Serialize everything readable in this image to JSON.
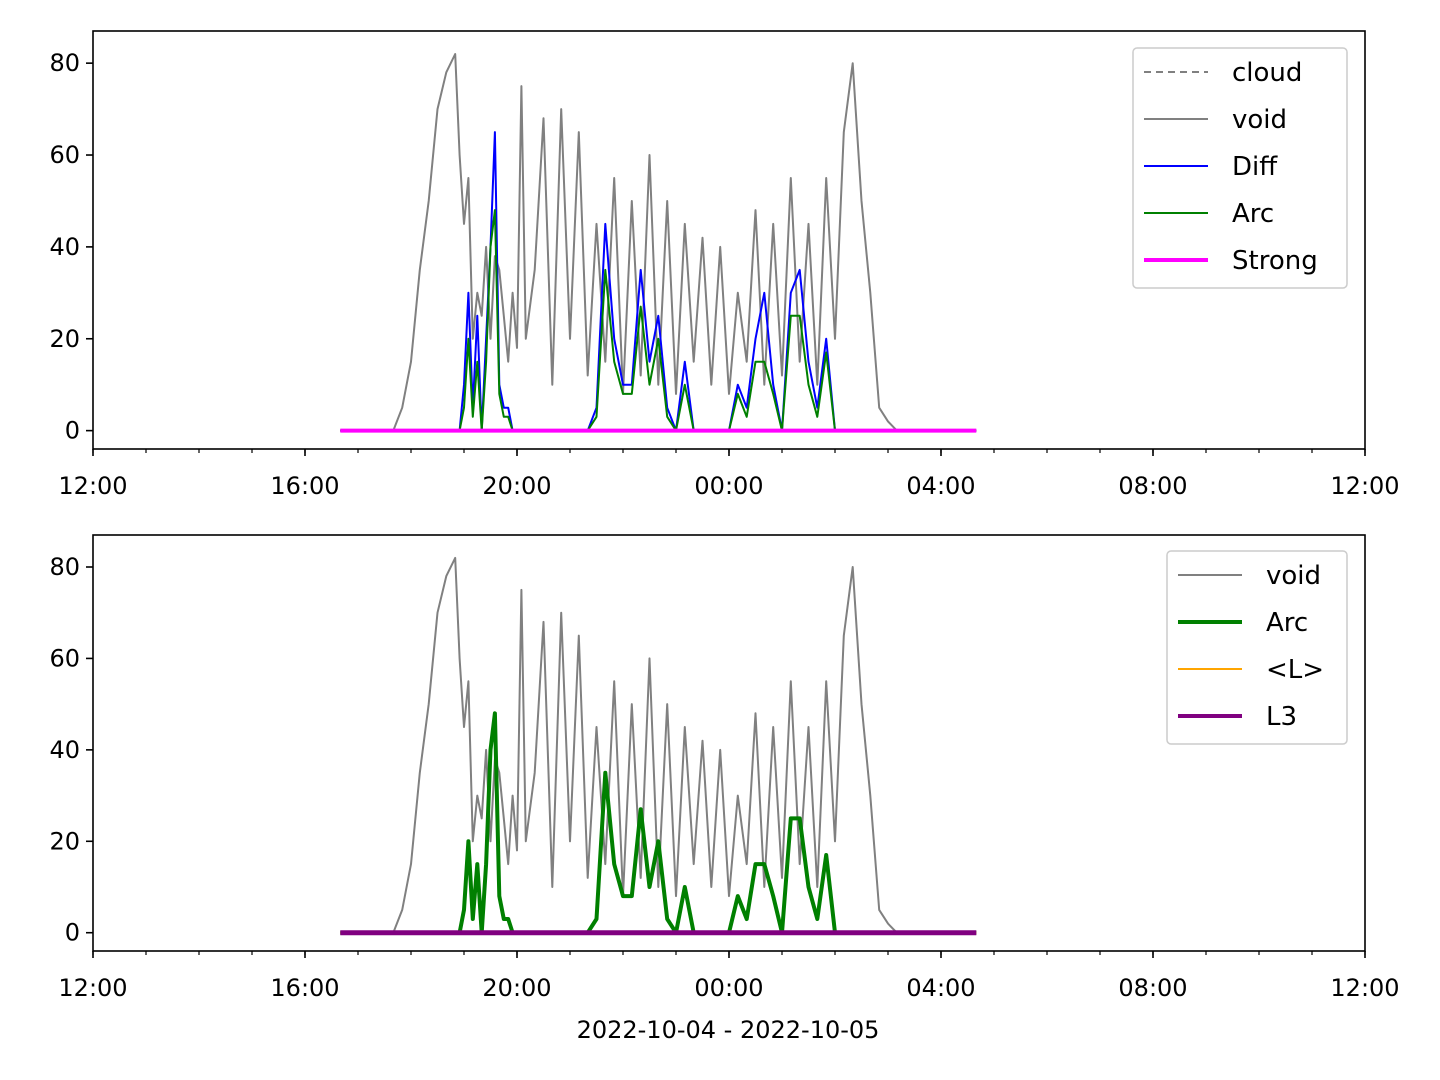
{
  "figure": {
    "xlabel": "2022-10-04 - 2022-10-05"
  },
  "chart_data": [
    {
      "type": "line",
      "x_axis": {
        "unit": "datetime",
        "range": [
          "2022-10-04 12:00",
          "2022-10-05 12:00"
        ],
        "major_ticks": [
          "2022-10-04 12:00",
          "2022-10-04 16:00",
          "2022-10-04 20:00",
          "2022-10-05 00:00",
          "2022-10-05 04:00",
          "2022-10-05 08:00",
          "2022-10-05 12:00"
        ],
        "tick_labels": [
          "12:00",
          "16:00",
          "20:00",
          "00:00",
          "04:00",
          "08:00",
          "12:00"
        ],
        "minor_tick_hours": 1
      },
      "y_axis": {
        "ylim": [
          -4,
          87
        ],
        "ticks": [
          0,
          20,
          40,
          60,
          80
        ],
        "tick_labels": [
          "0",
          "20",
          "40",
          "60",
          "80"
        ]
      },
      "legend": {
        "placement": "top-right",
        "entries": [
          {
            "label": "cloud",
            "color": "#808080",
            "style": "dashed"
          },
          {
            "label": "void",
            "color": "#808080",
            "style": "solid"
          },
          {
            "label": "Diff",
            "color": "#0000ff",
            "style": "solid"
          },
          {
            "label": "Arc",
            "color": "#008000",
            "style": "solid"
          },
          {
            "label": "Strong",
            "color": "#ff00ff",
            "style": "solid-thick"
          }
        ]
      },
      "series": [
        {
          "name": "void",
          "color": "#808080",
          "x": [
            "2022-10-04 16:40",
            "2022-10-04 17:40",
            "2022-10-04 17:50",
            "2022-10-04 18:00",
            "2022-10-04 18:10",
            "2022-10-04 18:20",
            "2022-10-04 18:30",
            "2022-10-04 18:40",
            "2022-10-04 18:50",
            "2022-10-04 18:55",
            "2022-10-04 19:00",
            "2022-10-04 19:05",
            "2022-10-04 19:10",
            "2022-10-04 19:15",
            "2022-10-04 19:20",
            "2022-10-04 19:25",
            "2022-10-04 19:30",
            "2022-10-04 19:35",
            "2022-10-04 19:40",
            "2022-10-04 19:45",
            "2022-10-04 19:50",
            "2022-10-04 19:55",
            "2022-10-04 20:00",
            "2022-10-04 20:05",
            "2022-10-04 20:10",
            "2022-10-04 20:20",
            "2022-10-04 20:30",
            "2022-10-04 20:40",
            "2022-10-04 20:50",
            "2022-10-04 21:00",
            "2022-10-04 21:10",
            "2022-10-04 21:20",
            "2022-10-04 21:30",
            "2022-10-04 21:40",
            "2022-10-04 21:50",
            "2022-10-04 22:00",
            "2022-10-04 22:10",
            "2022-10-04 22:20",
            "2022-10-04 22:30",
            "2022-10-04 22:40",
            "2022-10-04 22:50",
            "2022-10-04 23:00",
            "2022-10-04 23:10",
            "2022-10-04 23:20",
            "2022-10-04 23:30",
            "2022-10-04 23:40",
            "2022-10-04 23:50",
            "2022-10-05 00:00",
            "2022-10-05 00:10",
            "2022-10-05 00:20",
            "2022-10-05 00:30",
            "2022-10-05 00:40",
            "2022-10-05 00:50",
            "2022-10-05 01:00",
            "2022-10-05 01:10",
            "2022-10-05 01:20",
            "2022-10-05 01:30",
            "2022-10-05 01:40",
            "2022-10-05 01:50",
            "2022-10-05 02:00",
            "2022-10-05 02:10",
            "2022-10-05 02:20",
            "2022-10-05 02:30",
            "2022-10-05 02:40",
            "2022-10-05 02:50",
            "2022-10-05 03:00",
            "2022-10-05 03:10",
            "2022-10-05 03:20",
            "2022-10-05 03:30",
            "2022-10-05 04:40"
          ],
          "y": [
            0,
            0,
            5,
            15,
            35,
            50,
            70,
            78,
            82,
            60,
            45,
            55,
            20,
            30,
            25,
            40,
            20,
            38,
            35,
            25,
            15,
            30,
            18,
            75,
            20,
            35,
            68,
            10,
            70,
            20,
            65,
            12,
            45,
            15,
            55,
            8,
            50,
            12,
            60,
            10,
            50,
            8,
            45,
            15,
            42,
            10,
            40,
            8,
            30,
            15,
            48,
            10,
            45,
            12,
            55,
            15,
            45,
            10,
            55,
            20,
            65,
            80,
            50,
            30,
            5,
            2,
            0,
            0,
            0,
            0
          ]
        },
        {
          "name": "Diff",
          "color": "#0000ff",
          "x": [
            "2022-10-04 16:40",
            "2022-10-04 18:55",
            "2022-10-04 19:00",
            "2022-10-04 19:05",
            "2022-10-04 19:10",
            "2022-10-04 19:15",
            "2022-10-04 19:20",
            "2022-10-04 19:25",
            "2022-10-04 19:30",
            "2022-10-04 19:35",
            "2022-10-04 19:40",
            "2022-10-04 19:45",
            "2022-10-04 19:50",
            "2022-10-04 19:55",
            "2022-10-04 20:05",
            "2022-10-04 21:20",
            "2022-10-04 21:30",
            "2022-10-04 21:40",
            "2022-10-04 21:50",
            "2022-10-04 22:00",
            "2022-10-04 22:10",
            "2022-10-04 22:20",
            "2022-10-04 22:30",
            "2022-10-04 22:40",
            "2022-10-04 22:50",
            "2022-10-04 23:00",
            "2022-10-04 23:10",
            "2022-10-04 23:20",
            "2022-10-05 00:00",
            "2022-10-05 00:10",
            "2022-10-05 00:20",
            "2022-10-05 00:30",
            "2022-10-05 00:40",
            "2022-10-05 00:50",
            "2022-10-05 01:00",
            "2022-10-05 01:10",
            "2022-10-05 01:20",
            "2022-10-05 01:30",
            "2022-10-05 01:40",
            "2022-10-05 01:50",
            "2022-10-05 02:00",
            "2022-10-05 04:40"
          ],
          "y": [
            0,
            0,
            10,
            30,
            5,
            25,
            0,
            20,
            40,
            65,
            10,
            5,
            5,
            0,
            0,
            0,
            5,
            45,
            20,
            10,
            10,
            35,
            15,
            25,
            5,
            0,
            15,
            0,
            0,
            10,
            5,
            20,
            30,
            10,
            0,
            30,
            35,
            15,
            5,
            20,
            0,
            0
          ]
        },
        {
          "name": "Arc",
          "color": "#008000",
          "x": [
            "2022-10-04 16:40",
            "2022-10-04 18:55",
            "2022-10-04 19:00",
            "2022-10-04 19:05",
            "2022-10-04 19:10",
            "2022-10-04 19:15",
            "2022-10-04 19:20",
            "2022-10-04 19:25",
            "2022-10-04 19:30",
            "2022-10-04 19:35",
            "2022-10-04 19:40",
            "2022-10-04 19:45",
            "2022-10-04 19:50",
            "2022-10-04 19:55",
            "2022-10-04 20:05",
            "2022-10-04 21:20",
            "2022-10-04 21:30",
            "2022-10-04 21:40",
            "2022-10-04 21:50",
            "2022-10-04 22:00",
            "2022-10-04 22:10",
            "2022-10-04 22:20",
            "2022-10-04 22:30",
            "2022-10-04 22:40",
            "2022-10-04 22:50",
            "2022-10-04 23:00",
            "2022-10-04 23:10",
            "2022-10-04 23:20",
            "2022-10-05 00:00",
            "2022-10-05 00:10",
            "2022-10-05 00:20",
            "2022-10-05 00:30",
            "2022-10-05 00:40",
            "2022-10-05 00:50",
            "2022-10-05 01:00",
            "2022-10-05 01:10",
            "2022-10-05 01:20",
            "2022-10-05 01:30",
            "2022-10-05 01:40",
            "2022-10-05 01:50",
            "2022-10-05 02:00",
            "2022-10-05 04:40"
          ],
          "y": [
            0,
            0,
            5,
            20,
            3,
            15,
            0,
            15,
            40,
            48,
            8,
            3,
            3,
            0,
            0,
            0,
            3,
            35,
            15,
            8,
            8,
            27,
            10,
            20,
            3,
            0,
            10,
            0,
            0,
            8,
            3,
            15,
            15,
            8,
            0,
            25,
            25,
            10,
            3,
            17,
            0,
            0
          ]
        },
        {
          "name": "Strong",
          "color": "#ff00ff",
          "x": [
            "2022-10-04 16:40",
            "2022-10-05 04:40"
          ],
          "y": [
            0,
            0
          ]
        }
      ]
    },
    {
      "type": "line",
      "x_axis": {
        "unit": "datetime",
        "range": [
          "2022-10-04 12:00",
          "2022-10-05 12:00"
        ],
        "major_ticks": [
          "2022-10-04 12:00",
          "2022-10-04 16:00",
          "2022-10-04 20:00",
          "2022-10-05 00:00",
          "2022-10-05 04:00",
          "2022-10-05 08:00",
          "2022-10-05 12:00"
        ],
        "tick_labels": [
          "12:00",
          "16:00",
          "20:00",
          "00:00",
          "04:00",
          "08:00",
          "12:00"
        ],
        "minor_tick_hours": 1,
        "label": "2022-10-04 - 2022-10-05"
      },
      "y_axis": {
        "ylim": [
          -4,
          87
        ],
        "ticks": [
          0,
          20,
          40,
          60,
          80
        ],
        "tick_labels": [
          "0",
          "20",
          "40",
          "60",
          "80"
        ]
      },
      "legend": {
        "placement": "top-right",
        "entries": [
          {
            "label": "void",
            "color": "#808080",
            "style": "solid"
          },
          {
            "label": "Arc",
            "color": "#008000",
            "style": "solid-thick"
          },
          {
            "label": "<L>",
            "color": "#ffa500",
            "style": "solid"
          },
          {
            "label": "L3",
            "color": "#800080",
            "style": "solid-thick"
          }
        ]
      },
      "series": [
        {
          "name": "void",
          "color": "#808080",
          "x": [
            "2022-10-04 16:40",
            "2022-10-04 17:40",
            "2022-10-04 17:50",
            "2022-10-04 18:00",
            "2022-10-04 18:10",
            "2022-10-04 18:20",
            "2022-10-04 18:30",
            "2022-10-04 18:40",
            "2022-10-04 18:50",
            "2022-10-04 18:55",
            "2022-10-04 19:00",
            "2022-10-04 19:05",
            "2022-10-04 19:10",
            "2022-10-04 19:15",
            "2022-10-04 19:20",
            "2022-10-04 19:25",
            "2022-10-04 19:30",
            "2022-10-04 19:35",
            "2022-10-04 19:40",
            "2022-10-04 19:45",
            "2022-10-04 19:50",
            "2022-10-04 19:55",
            "2022-10-04 20:00",
            "2022-10-04 20:05",
            "2022-10-04 20:10",
            "2022-10-04 20:20",
            "2022-10-04 20:30",
            "2022-10-04 20:40",
            "2022-10-04 20:50",
            "2022-10-04 21:00",
            "2022-10-04 21:10",
            "2022-10-04 21:20",
            "2022-10-04 21:30",
            "2022-10-04 21:40",
            "2022-10-04 21:50",
            "2022-10-04 22:00",
            "2022-10-04 22:10",
            "2022-10-04 22:20",
            "2022-10-04 22:30",
            "2022-10-04 22:40",
            "2022-10-04 22:50",
            "2022-10-04 23:00",
            "2022-10-04 23:10",
            "2022-10-04 23:20",
            "2022-10-04 23:30",
            "2022-10-04 23:40",
            "2022-10-04 23:50",
            "2022-10-05 00:00",
            "2022-10-05 00:10",
            "2022-10-05 00:20",
            "2022-10-05 00:30",
            "2022-10-05 00:40",
            "2022-10-05 00:50",
            "2022-10-05 01:00",
            "2022-10-05 01:10",
            "2022-10-05 01:20",
            "2022-10-05 01:30",
            "2022-10-05 01:40",
            "2022-10-05 01:50",
            "2022-10-05 02:00",
            "2022-10-05 02:10",
            "2022-10-05 02:20",
            "2022-10-05 02:30",
            "2022-10-05 02:40",
            "2022-10-05 02:50",
            "2022-10-05 03:00",
            "2022-10-05 03:10",
            "2022-10-05 03:20",
            "2022-10-05 03:30",
            "2022-10-05 04:40"
          ],
          "y": [
            0,
            0,
            5,
            15,
            35,
            50,
            70,
            78,
            82,
            60,
            45,
            55,
            20,
            30,
            25,
            40,
            20,
            38,
            35,
            25,
            15,
            30,
            18,
            75,
            20,
            35,
            68,
            10,
            70,
            20,
            65,
            12,
            45,
            15,
            55,
            8,
            50,
            12,
            60,
            10,
            50,
            8,
            45,
            15,
            42,
            10,
            40,
            8,
            30,
            15,
            48,
            10,
            45,
            12,
            55,
            15,
            45,
            10,
            55,
            20,
            65,
            80,
            50,
            30,
            5,
            2,
            0,
            0,
            0,
            0
          ]
        },
        {
          "name": "Arc",
          "color": "#008000",
          "x": [
            "2022-10-04 16:40",
            "2022-10-04 18:55",
            "2022-10-04 19:00",
            "2022-10-04 19:05",
            "2022-10-04 19:10",
            "2022-10-04 19:15",
            "2022-10-04 19:20",
            "2022-10-04 19:25",
            "2022-10-04 19:30",
            "2022-10-04 19:35",
            "2022-10-04 19:40",
            "2022-10-04 19:45",
            "2022-10-04 19:50",
            "2022-10-04 19:55",
            "2022-10-04 20:05",
            "2022-10-04 21:20",
            "2022-10-04 21:30",
            "2022-10-04 21:40",
            "2022-10-04 21:50",
            "2022-10-04 22:00",
            "2022-10-04 22:10",
            "2022-10-04 22:20",
            "2022-10-04 22:30",
            "2022-10-04 22:40",
            "2022-10-04 22:50",
            "2022-10-04 23:00",
            "2022-10-04 23:10",
            "2022-10-04 23:20",
            "2022-10-05 00:00",
            "2022-10-05 00:10",
            "2022-10-05 00:20",
            "2022-10-05 00:30",
            "2022-10-05 00:40",
            "2022-10-05 00:50",
            "2022-10-05 01:00",
            "2022-10-05 01:10",
            "2022-10-05 01:20",
            "2022-10-05 01:30",
            "2022-10-05 01:40",
            "2022-10-05 01:50",
            "2022-10-05 02:00",
            "2022-10-05 04:40"
          ],
          "y": [
            0,
            0,
            5,
            20,
            3,
            15,
            0,
            15,
            40,
            48,
            8,
            3,
            3,
            0,
            0,
            0,
            3,
            35,
            15,
            8,
            8,
            27,
            10,
            20,
            3,
            0,
            10,
            0,
            0,
            8,
            3,
            15,
            15,
            8,
            0,
            25,
            25,
            10,
            3,
            17,
            0,
            0
          ]
        },
        {
          "name": "<L>",
          "color": "#ffa500",
          "x": [
            "2022-10-04 16:40",
            "2022-10-05 04:40"
          ],
          "y": [
            0,
            0
          ]
        },
        {
          "name": "L3",
          "color": "#800080",
          "x": [
            "2022-10-04 16:40",
            "2022-10-05 04:40"
          ],
          "y": [
            0,
            0
          ]
        }
      ]
    }
  ]
}
